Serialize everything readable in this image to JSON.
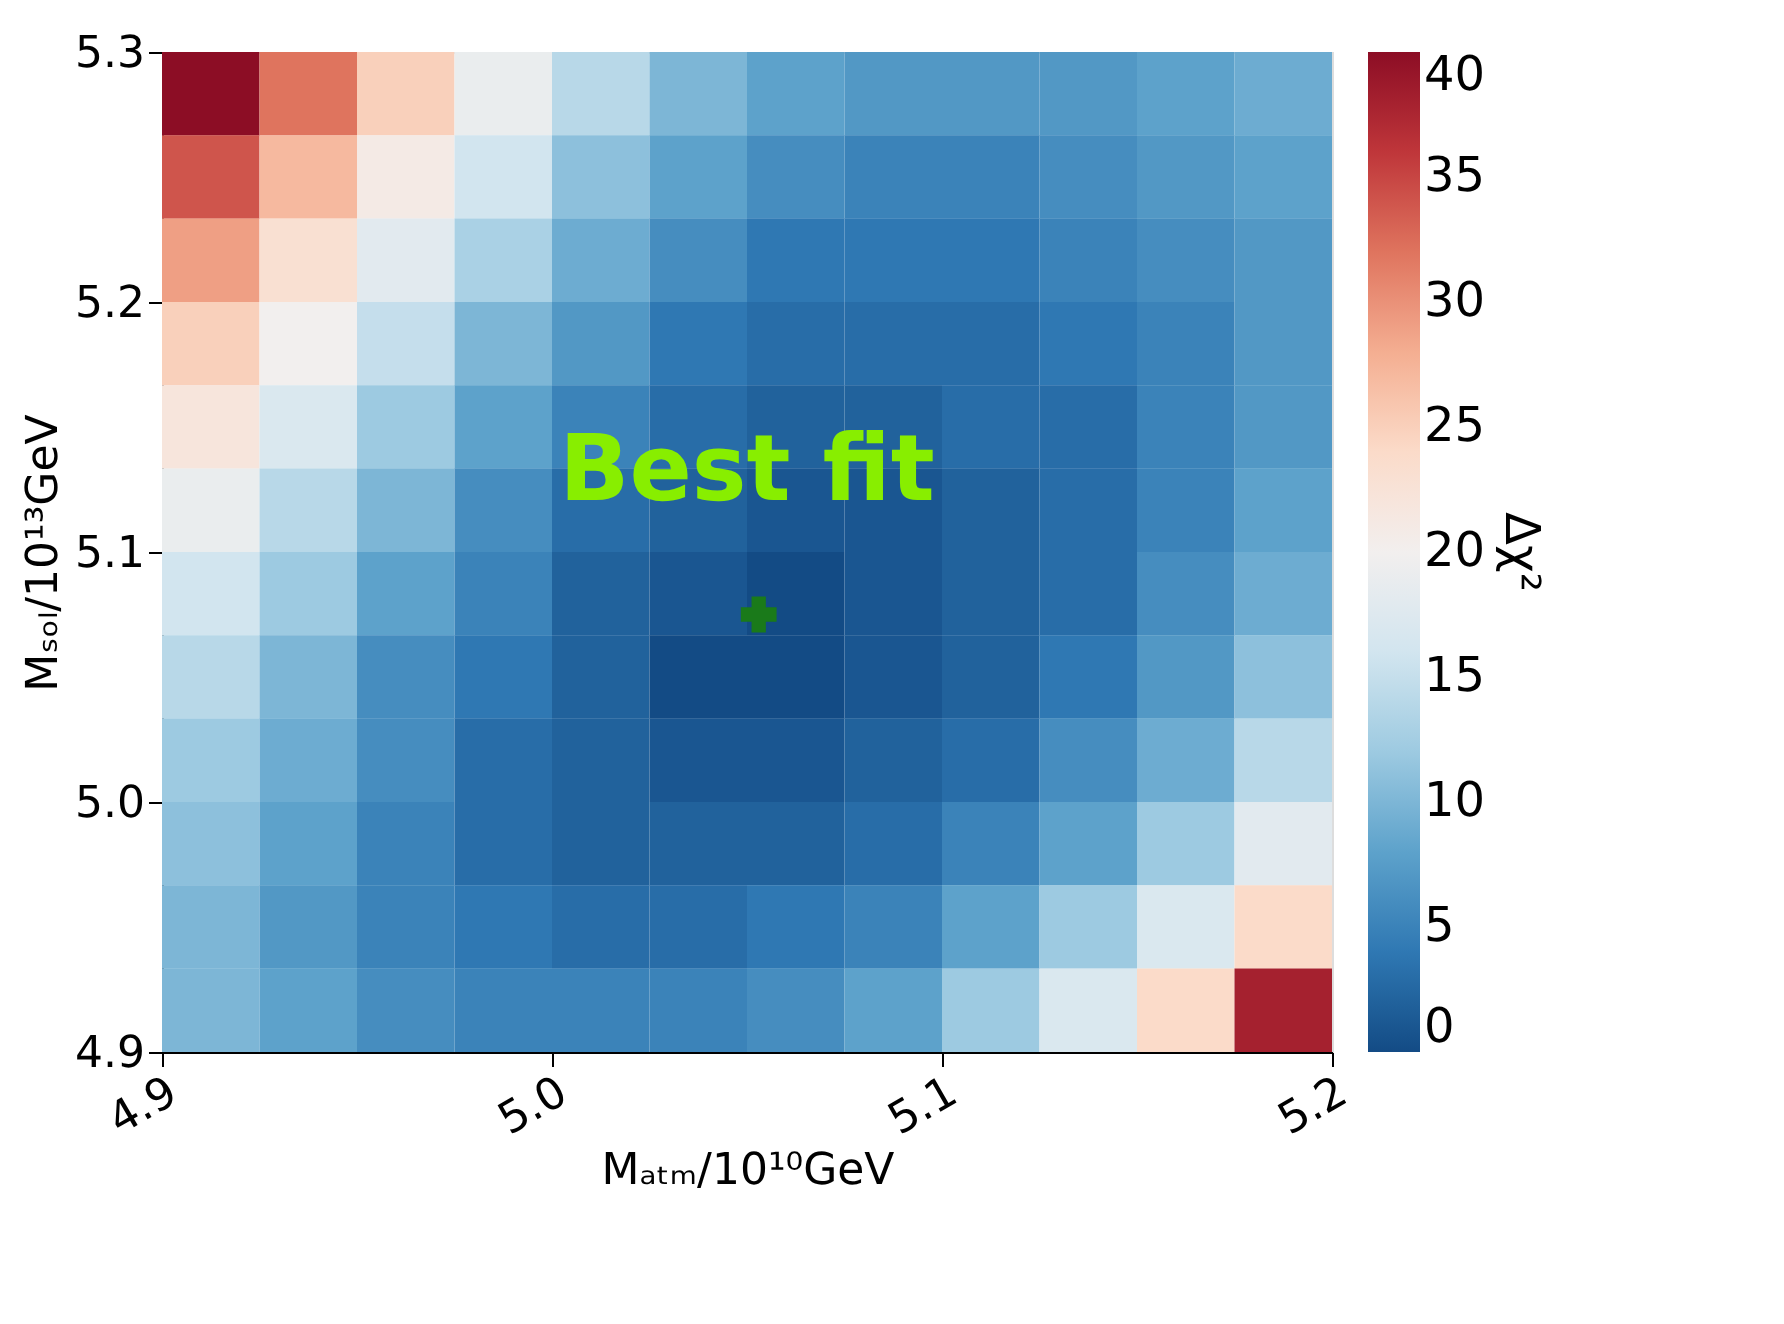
{
  "chart_data": {
    "type": "heatmap",
    "xlabel": "Mₐₜₘ/10¹⁰GeV",
    "ylabel": "Mₛₒₗ/10¹³GeV",
    "clabel": "Δχ²",
    "x": [
      4.9125,
      4.9375,
      4.9625,
      4.9875,
      5.0125,
      5.0375,
      5.0625,
      5.0875,
      5.1125,
      5.1375,
      5.1625,
      5.1875
    ],
    "y": [
      5.2833,
      5.25,
      5.2167,
      5.1833,
      5.15,
      5.1167,
      5.0833,
      5.05,
      5.0167,
      4.9833,
      4.95,
      4.9167
    ],
    "cells": [
      [
        40,
        32,
        25,
        19,
        14,
        10,
        8,
        7,
        7,
        7,
        8,
        9
      ],
      [
        34,
        27,
        21,
        16,
        11,
        8,
        6,
        5,
        5,
        6,
        7,
        8
      ],
      [
        29,
        23,
        18,
        13,
        9,
        6,
        4,
        4,
        4,
        5,
        6,
        7
      ],
      [
        25,
        20,
        15,
        10,
        7,
        4,
        3,
        3,
        3,
        4,
        5,
        7
      ],
      [
        22,
        17,
        12,
        8,
        5,
        3,
        2,
        2,
        3,
        3,
        5,
        7
      ],
      [
        19,
        14,
        10,
        6,
        3,
        2,
        1,
        1,
        2,
        3,
        5,
        8
      ],
      [
        16,
        12,
        8,
        5,
        2,
        1,
        0,
        1,
        2,
        3,
        6,
        9
      ],
      [
        14,
        10,
        6,
        4,
        2,
        0,
        0,
        1,
        2,
        4,
        7,
        11
      ],
      [
        12,
        9,
        6,
        3,
        2,
        1,
        1,
        2,
        3,
        6,
        9,
        14
      ],
      [
        11,
        8,
        5,
        3,
        2,
        2,
        2,
        3,
        5,
        8,
        12,
        18
      ],
      [
        10,
        7,
        5,
        4,
        3,
        3,
        4,
        5,
        8,
        12,
        17,
        24
      ],
      [
        10,
        8,
        6,
        5,
        5,
        5,
        6,
        8,
        12,
        17,
        24,
        38
      ]
    ],
    "xlim": [
      4.9,
      5.2
    ],
    "ylim": [
      4.9,
      5.3
    ],
    "xticks": [
      4.9,
      {
        "value": 5.0,
        "label": "5.0"
      },
      5.1,
      5.2
    ],
    "yticks": [
      4.9,
      {
        "value": 5.0,
        "label": "5.0"
      },
      5.1,
      5.2,
      5.3
    ],
    "clim": [
      0,
      40
    ],
    "cticks": [
      0,
      5,
      10,
      15,
      20,
      25,
      30,
      35,
      40
    ],
    "series": [
      {
        "type": "scatter",
        "x": [
          5.053
        ],
        "values": [
          5.075
        ],
        "color": "#1a7a1a",
        "marker": "cross"
      }
    ],
    "annotations": [
      "Best fit"
    ],
    "grid": false
  }
}
